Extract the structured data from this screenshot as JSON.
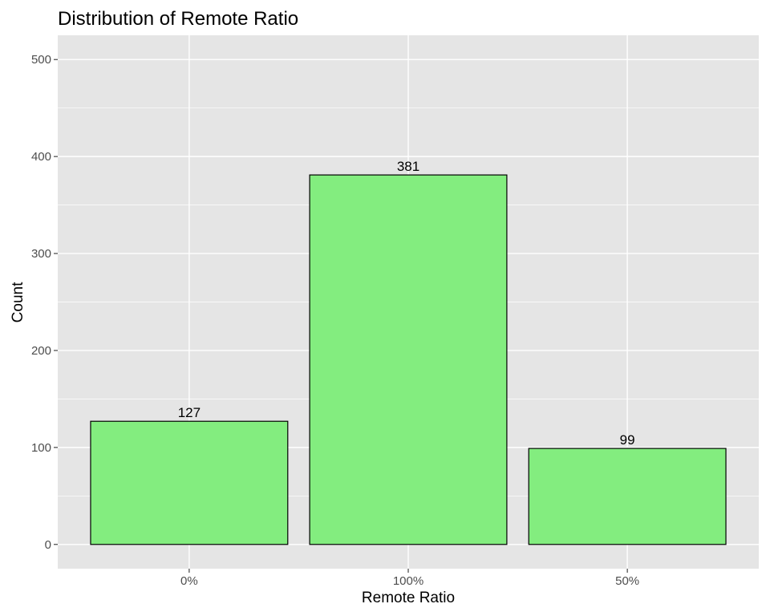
{
  "chart_data": {
    "type": "bar",
    "title": "Distribution of Remote Ratio",
    "xlabel": "Remote Ratio",
    "ylabel": "Count",
    "categories": [
      "0%",
      "100%",
      "50%"
    ],
    "values": [
      127,
      381,
      99
    ],
    "data_labels": [
      "127",
      "381",
      "99"
    ],
    "ylim": [
      -25,
      525
    ],
    "yticks": [
      0,
      100,
      200,
      300,
      400,
      500
    ],
    "ytick_labels": [
      "0",
      "100",
      "200",
      "300",
      "400",
      "500"
    ],
    "grid": true,
    "legend": "none",
    "colors": {
      "bar_fill": "#83ed7f",
      "bar_stroke": "#000000",
      "panel_background": "#e5e5e5",
      "grid": "#ffffff"
    }
  }
}
